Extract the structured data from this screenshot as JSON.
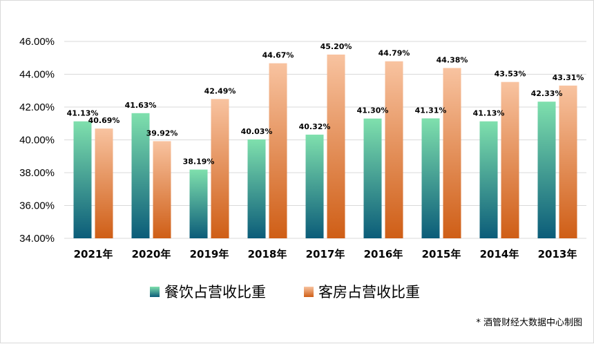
{
  "chart_data": {
    "type": "bar",
    "categories": [
      "2021年",
      "2020年",
      "2019年",
      "2018年",
      "2017年",
      "2016年",
      "2015年",
      "2014年",
      "2013年"
    ],
    "series": [
      {
        "name": "餐饮占营收比重",
        "values": [
          41.13,
          41.63,
          38.19,
          40.03,
          40.32,
          41.3,
          41.31,
          41.13,
          42.33
        ],
        "labels": [
          "41.13%",
          "41.63%",
          "38.19%",
          "40.03%",
          "40.32%",
          "41.30%",
          "41.31%",
          "41.13%",
          "42.33%"
        ],
        "color_top": "#7fe0ad",
        "color_bottom": "#0b5c79"
      },
      {
        "name": "客房占营收比重",
        "values": [
          40.69,
          39.92,
          42.49,
          44.67,
          45.2,
          44.79,
          44.38,
          43.53,
          43.31
        ],
        "labels": [
          "40.69%",
          "39.92%",
          "42.49%",
          "44.67%",
          "45.20%",
          "44.79%",
          "44.38%",
          "43.53%",
          "43.31%"
        ],
        "color_top": "#f8c3a0",
        "color_bottom": "#cf5e16"
      }
    ],
    "ylim": [
      34,
      46
    ],
    "yticks": [
      "34.00%",
      "36.00%",
      "38.00%",
      "40.00%",
      "42.00%",
      "44.00%",
      "46.00%"
    ],
    "grid": true,
    "legend": "bottom"
  },
  "footnote": "* 酒管财经大数据中心制图"
}
